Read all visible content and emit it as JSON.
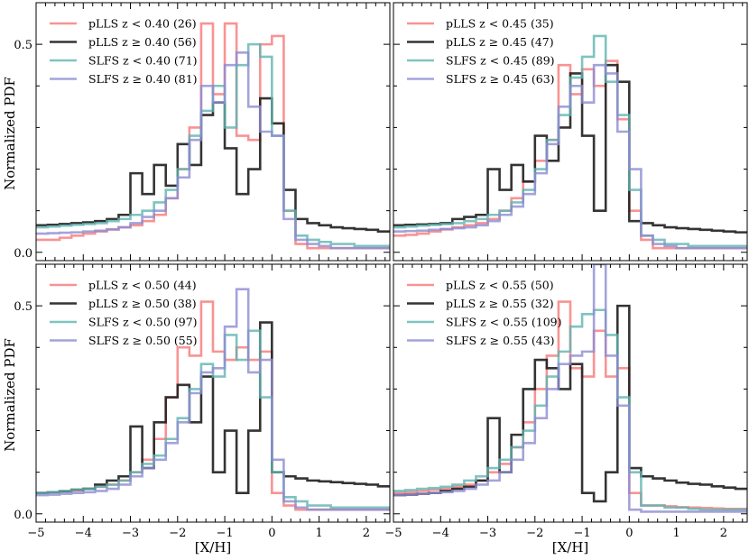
{
  "figure": {
    "ylabel": "Normalized PDF",
    "xlabel": "[X/H]"
  },
  "chart_data": [
    {
      "type": "step-histogram",
      "panel": "top-left",
      "xlim": [
        -5,
        2.5
      ],
      "ylim": [
        -0.02,
        0.6
      ],
      "xticks": [
        -5,
        -4,
        -3,
        -2,
        -1,
        0,
        1,
        2
      ],
      "yticks": [
        0.0,
        0.5
      ],
      "ytick_labels": [
        "0.0",
        "0.5"
      ],
      "legend": [
        "pLLS z < 0.40 (26)",
        "pLLS z ≥ 0.40 (56)",
        "SLFS z < 0.40 (71)",
        "SLFS z ≥ 0.40 (81)"
      ],
      "bin_edges": [
        -5,
        -4.75,
        -4.5,
        -4.25,
        -4,
        -3.75,
        -3.5,
        -3.25,
        -3,
        -2.75,
        -2.5,
        -2.25,
        -2,
        -1.75,
        -1.5,
        -1.25,
        -1,
        -0.75,
        -0.5,
        -0.25,
        0,
        0.25,
        0.5,
        0.75,
        1,
        1.25,
        1.5,
        1.75,
        2,
        2.25,
        2.5
      ],
      "series": [
        {
          "name": "pLLS z < 0.40 (26)",
          "color": "#f87878",
          "values": [
            0.03,
            0.03,
            0.035,
            0.04,
            0.045,
            0.05,
            0.055,
            0.06,
            0.065,
            0.075,
            0.09,
            0.13,
            0.2,
            0.3,
            0.55,
            0.38,
            0.55,
            0.28,
            0.27,
            0.5,
            0.52,
            0.1,
            0.02,
            0.01,
            0.01,
            0.01,
            0.01,
            0.01,
            0.01,
            0.01
          ]
        },
        {
          "name": "pLLS z ≥ 0.40 (56)",
          "color": "#1e1e1e",
          "values": [
            0.065,
            0.066,
            0.068,
            0.07,
            0.072,
            0.075,
            0.08,
            0.09,
            0.19,
            0.14,
            0.21,
            0.16,
            0.26,
            0.21,
            0.33,
            0.36,
            0.25,
            0.14,
            0.2,
            0.37,
            0.31,
            0.15,
            0.08,
            0.07,
            0.065,
            0.06,
            0.058,
            0.056,
            0.054,
            0.05
          ]
        },
        {
          "name": "SLFS z < 0.40 (71)",
          "color": "#5fb4b0",
          "values": [
            0.06,
            0.062,
            0.064,
            0.066,
            0.068,
            0.07,
            0.075,
            0.08,
            0.09,
            0.1,
            0.12,
            0.15,
            0.2,
            0.28,
            0.34,
            0.4,
            0.3,
            0.45,
            0.5,
            0.47,
            0.28,
            0.1,
            0.04,
            0.03,
            0.025,
            0.02,
            0.02,
            0.015,
            0.015,
            0.015
          ]
        },
        {
          "name": "SLFS z ≥ 0.40 (81)",
          "color": "#8c8cd2",
          "values": [
            0.045,
            0.046,
            0.047,
            0.048,
            0.05,
            0.052,
            0.055,
            0.06,
            0.07,
            0.085,
            0.1,
            0.13,
            0.18,
            0.27,
            0.4,
            0.36,
            0.45,
            0.48,
            0.35,
            0.29,
            0.28,
            0.08,
            0.03,
            0.02,
            0.015,
            0.01,
            0.01,
            0.01,
            0.01,
            0.01
          ]
        }
      ]
    },
    {
      "type": "step-histogram",
      "panel": "top-right",
      "xlim": [
        -5,
        2.5
      ],
      "ylim": [
        -0.02,
        0.6
      ],
      "xticks": [
        -5,
        -4,
        -3,
        -2,
        -1,
        0,
        1,
        2
      ],
      "yticks": [
        0.0,
        0.5
      ],
      "legend": [
        "pLLS z < 0.45 (35)",
        "pLLS z ≥ 0.45 (47)",
        "SLFS z < 0.45 (89)",
        "SLFS z ≥ 0.45 (63)"
      ],
      "bin_edges": [
        -5,
        -4.75,
        -4.5,
        -4.25,
        -4,
        -3.75,
        -3.5,
        -3.25,
        -3,
        -2.75,
        -2.5,
        -2.25,
        -2,
        -1.75,
        -1.5,
        -1.25,
        -1,
        -0.75,
        -0.5,
        -0.25,
        0,
        0.25,
        0.5,
        0.75,
        1,
        1.25,
        1.5,
        1.75,
        2,
        2.25,
        2.5
      ],
      "series": [
        {
          "name": "pLLS z < 0.45 (35)",
          "color": "#f87878",
          "values": [
            0.04,
            0.042,
            0.045,
            0.05,
            0.055,
            0.06,
            0.065,
            0.07,
            0.08,
            0.1,
            0.13,
            0.17,
            0.22,
            0.27,
            0.45,
            0.38,
            0.44,
            0.4,
            0.46,
            0.32,
            0.1,
            0.03,
            0.01,
            0.01,
            0.01,
            0.01,
            0.01,
            0.01,
            0.01,
            0.01
          ]
        },
        {
          "name": "pLLS z ≥ 0.45 (47)",
          "color": "#1e1e1e",
          "values": [
            0.065,
            0.066,
            0.067,
            0.068,
            0.07,
            0.08,
            0.085,
            0.09,
            0.2,
            0.15,
            0.21,
            0.17,
            0.28,
            0.22,
            0.3,
            0.43,
            0.28,
            0.1,
            0.45,
            0.41,
            0.075,
            0.07,
            0.065,
            0.06,
            0.058,
            0.056,
            0.054,
            0.052,
            0.05,
            0.048
          ]
        },
        {
          "name": "SLFS z < 0.45 (89)",
          "color": "#5fb4b0",
          "values": [
            0.06,
            0.062,
            0.064,
            0.066,
            0.068,
            0.07,
            0.075,
            0.08,
            0.09,
            0.1,
            0.12,
            0.15,
            0.2,
            0.27,
            0.33,
            0.42,
            0.47,
            0.52,
            0.41,
            0.33,
            0.15,
            0.04,
            0.03,
            0.02,
            0.02,
            0.015,
            0.015,
            0.015,
            0.015,
            0.015
          ]
        },
        {
          "name": "SLFS z ≥ 0.45 (63)",
          "color": "#8c8cd2",
          "values": [
            0.05,
            0.051,
            0.052,
            0.054,
            0.056,
            0.058,
            0.06,
            0.065,
            0.075,
            0.09,
            0.11,
            0.14,
            0.19,
            0.26,
            0.35,
            0.4,
            0.36,
            0.45,
            0.43,
            0.29,
            0.2,
            0.04,
            0.02,
            0.015,
            0.01,
            0.01,
            0.01,
            0.01,
            0.01,
            0.01
          ]
        }
      ]
    },
    {
      "type": "step-histogram",
      "panel": "bottom-left",
      "xlim": [
        -5,
        2.5
      ],
      "ylim": [
        -0.02,
        0.6
      ],
      "xticks": [
        -5,
        -4,
        -3,
        -2,
        -1,
        0,
        1,
        2
      ],
      "yticks": [
        0.0,
        0.5
      ],
      "legend": [
        "pLLS z < 0.50 (44)",
        "pLLS z ≥ 0.50 (38)",
        "SLFS z < 0.50 (97)",
        "SLFS z ≥ 0.50 (55)"
      ],
      "bin_edges": [
        -5,
        -4.75,
        -4.5,
        -4.25,
        -4,
        -3.75,
        -3.5,
        -3.25,
        -3,
        -2.75,
        -2.5,
        -2.25,
        -2,
        -1.75,
        -1.5,
        -1.25,
        -1,
        -0.75,
        -0.5,
        -0.25,
        0,
        0.25,
        0.5,
        0.75,
        1,
        1.25,
        1.5,
        1.75,
        2,
        2.25,
        2.5
      ],
      "series": [
        {
          "name": "pLLS z < 0.50 (44)",
          "color": "#f87878",
          "values": [
            0.05,
            0.052,
            0.054,
            0.056,
            0.06,
            0.065,
            0.07,
            0.08,
            0.1,
            0.13,
            0.18,
            0.28,
            0.4,
            0.38,
            0.51,
            0.39,
            0.37,
            0.4,
            0.37,
            0.39,
            0.05,
            0.02,
            0.01,
            0.01,
            0.01,
            0.01,
            0.01,
            0.01,
            0.01,
            0.01
          ]
        },
        {
          "name": "pLLS z ≥ 0.50 (38)",
          "color": "#1e1e1e",
          "values": [
            0.05,
            0.052,
            0.054,
            0.058,
            0.06,
            0.07,
            0.08,
            0.09,
            0.21,
            0.11,
            0.22,
            0.28,
            0.31,
            0.22,
            0.33,
            0.1,
            0.2,
            0.05,
            0.2,
            0.46,
            0.1,
            0.09,
            0.085,
            0.08,
            0.078,
            0.076,
            0.074,
            0.072,
            0.07,
            0.066
          ]
        },
        {
          "name": "SLFS z < 0.50 (97)",
          "color": "#5fb4b0",
          "values": [
            0.05,
            0.052,
            0.055,
            0.058,
            0.06,
            0.065,
            0.07,
            0.08,
            0.1,
            0.12,
            0.14,
            0.18,
            0.23,
            0.3,
            0.36,
            0.33,
            0.43,
            0.37,
            0.44,
            0.28,
            0.1,
            0.04,
            0.03,
            0.02,
            0.02,
            0.015,
            0.015,
            0.015,
            0.015,
            0.015
          ]
        },
        {
          "name": "SLFS z ≥ 0.50 (55)",
          "color": "#8c8cd2",
          "values": [
            0.045,
            0.046,
            0.048,
            0.05,
            0.052,
            0.055,
            0.06,
            0.07,
            0.09,
            0.11,
            0.13,
            0.17,
            0.22,
            0.29,
            0.34,
            0.35,
            0.45,
            0.54,
            0.34,
            0.37,
            0.13,
            0.03,
            0.015,
            0.01,
            0.01,
            0.01,
            0.01,
            0.01,
            0.01,
            0.01
          ]
        }
      ]
    },
    {
      "type": "step-histogram",
      "panel": "bottom-right",
      "xlim": [
        -5,
        2.5
      ],
      "ylim": [
        -0.02,
        0.6
      ],
      "xticks": [
        -5,
        -4,
        -3,
        -2,
        -1,
        0,
        1,
        2
      ],
      "yticks": [
        0.0,
        0.5
      ],
      "legend": [
        "pLLS z < 0.55 (50)",
        "pLLS z ≥ 0.55 (32)",
        "SLFS z < 0.55 (109)",
        "SLFS z ≥ 0.55 (43)"
      ],
      "bin_edges": [
        -5,
        -4.75,
        -4.5,
        -4.25,
        -4,
        -3.75,
        -3.5,
        -3.25,
        -3,
        -2.75,
        -2.5,
        -2.25,
        -2,
        -1.75,
        -1.5,
        -1.25,
        -1,
        -0.75,
        -0.5,
        -0.25,
        0,
        0.25,
        0.5,
        0.75,
        1,
        1.25,
        1.5,
        1.75,
        2,
        2.25,
        2.5
      ],
      "series": [
        {
          "name": "pLLS z < 0.55 (50)",
          "color": "#f87878",
          "values": [
            0.05,
            0.052,
            0.055,
            0.058,
            0.06,
            0.065,
            0.07,
            0.08,
            0.1,
            0.12,
            0.16,
            0.22,
            0.3,
            0.38,
            0.51,
            0.35,
            0.33,
            0.44,
            0.33,
            0.35,
            0.05,
            0.02,
            0.02,
            0.018,
            0.016,
            0.015,
            0.014,
            0.013,
            0.012,
            0.012
          ]
        },
        {
          "name": "pLLS z ≥ 0.55 (32)",
          "color": "#1e1e1e",
          "values": [
            0.045,
            0.046,
            0.048,
            0.05,
            0.055,
            0.06,
            0.065,
            0.08,
            0.23,
            0.1,
            0.19,
            0.3,
            0.37,
            0.35,
            0.3,
            0.36,
            0.05,
            0.03,
            0.1,
            0.5,
            0.11,
            0.09,
            0.085,
            0.08,
            0.075,
            0.072,
            0.07,
            0.066,
            0.063,
            0.06
          ]
        },
        {
          "name": "SLFS z < 0.55 (109)",
          "color": "#5fb4b0",
          "values": [
            0.055,
            0.057,
            0.06,
            0.062,
            0.065,
            0.07,
            0.08,
            0.09,
            0.11,
            0.13,
            0.16,
            0.2,
            0.26,
            0.33,
            0.39,
            0.45,
            0.48,
            0.49,
            0.43,
            0.28,
            0.1,
            0.02,
            0.02,
            0.015,
            0.015,
            0.012,
            0.01,
            0.01,
            0.01,
            0.01
          ]
        },
        {
          "name": "SLFS z ≥ 0.55 (43)",
          "color": "#8c8cd2",
          "values": [
            0.045,
            0.046,
            0.048,
            0.05,
            0.052,
            0.055,
            0.06,
            0.07,
            0.08,
            0.1,
            0.13,
            0.17,
            0.23,
            0.3,
            0.36,
            0.38,
            0.39,
            0.6,
            0.38,
            0.26,
            0.01,
            0.005,
            0.005,
            0.005,
            0.005,
            0.005,
            0.005,
            0.005,
            0.005,
            0.005
          ]
        }
      ]
    }
  ]
}
